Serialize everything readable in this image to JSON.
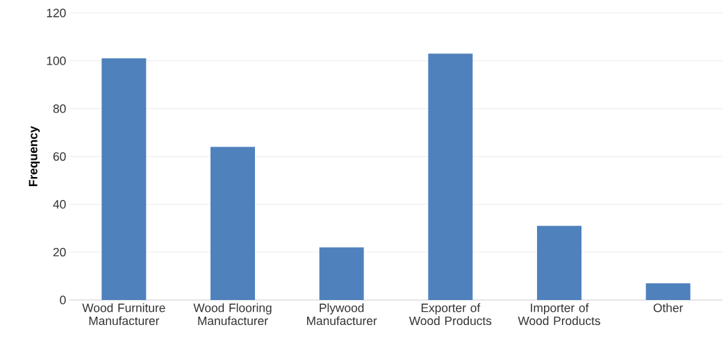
{
  "chart_data": {
    "type": "bar",
    "ylabel": "Frequency",
    "categories": [
      "Wood Furniture Manufacturer",
      "Wood Flooring Manufacturer",
      "Plywood Manufacturer",
      "Exporter of Wood Products",
      "Importer of Wood Products",
      "Other"
    ],
    "values": [
      101,
      64,
      22,
      103,
      31,
      7
    ],
    "color": "#4f81bd",
    "ylim": [
      0,
      120
    ],
    "yticks": [
      0,
      20,
      40,
      60,
      80,
      100,
      120
    ],
    "grid": "y"
  }
}
